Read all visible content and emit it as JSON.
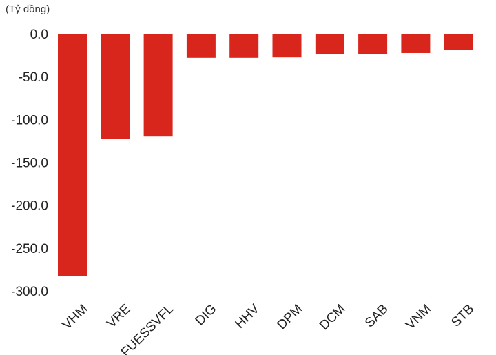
{
  "unit_label": "(Tỷ đồng)",
  "colors": {
    "bar": "#D9261C"
  },
  "chart_data": {
    "type": "bar",
    "title": "",
    "xlabel": "",
    "ylabel": "(Tỷ đồng)",
    "categories": [
      "VHM",
      "VRE",
      "FUESSVFL",
      "DIG",
      "HHV",
      "DPM",
      "DCM",
      "SAB",
      "VNM",
      "STB"
    ],
    "values": [
      -283,
      -123,
      -120,
      -28,
      -28,
      -27.5,
      -24,
      -24,
      -22.5,
      -19
    ],
    "ylim": [
      -300,
      0
    ],
    "yticks": [
      "0.0",
      "-50.0",
      "-100.0",
      "-150.0",
      "-200.0",
      "-250.0",
      "-300.0"
    ],
    "ytick_values": [
      0,
      -50,
      -100,
      -150,
      -200,
      -250,
      -300
    ],
    "grid": false,
    "legend": "none"
  }
}
